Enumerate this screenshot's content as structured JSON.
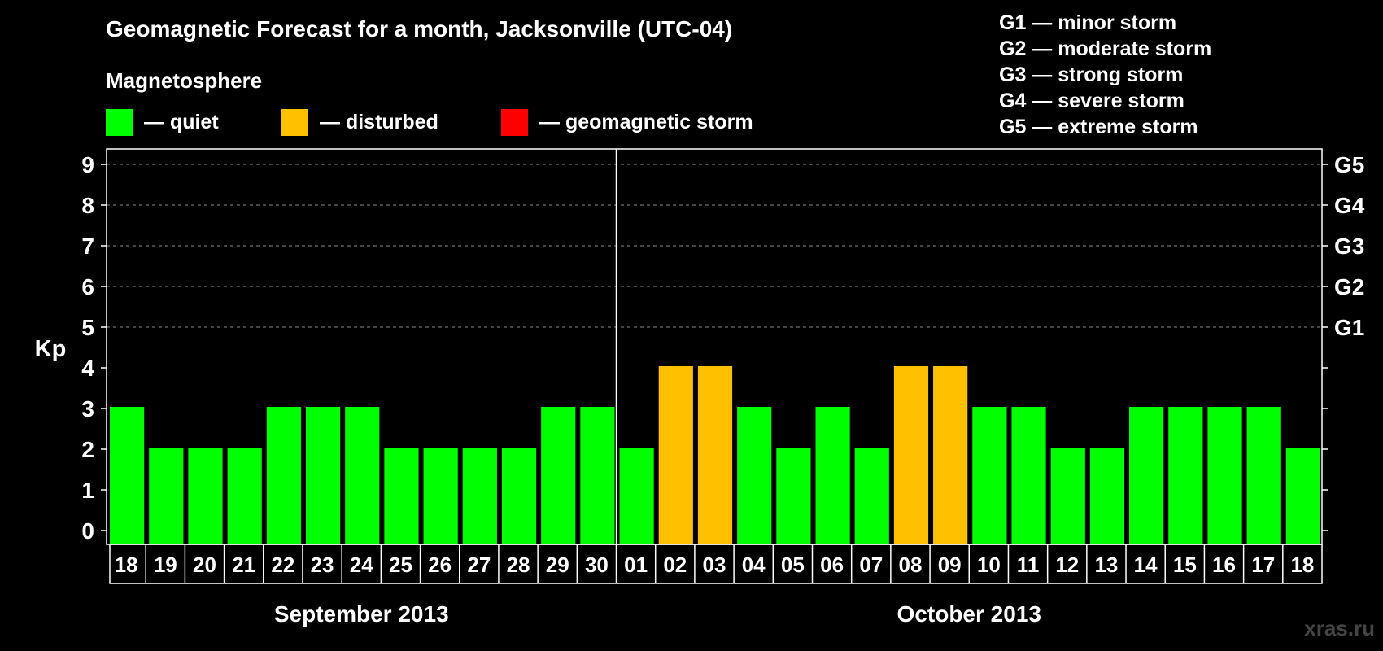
{
  "title": "Geomagnetic Forecast for a month, Jacksonville (UTC-04)",
  "subtitle": "Magnetosphere",
  "legend": [
    {
      "label": "— quiet",
      "color": "#00ff00"
    },
    {
      "label": "— disturbed",
      "color": "#ffc000"
    },
    {
      "label": "— geomagnetic storm",
      "color": "#ff0000"
    }
  ],
  "g_legend": [
    "G1 — minor storm",
    "G2 — moderate storm",
    "G3 — strong storm",
    "G4 — severe storm",
    "G5 — extreme storm"
  ],
  "watermark": "xras.ru",
  "chart_data": {
    "type": "bar",
    "ylabel": "Kp",
    "ylim": [
      0,
      9
    ],
    "yticks": [
      "0",
      "1",
      "2",
      "3",
      "4",
      "5",
      "6",
      "7",
      "8",
      "9"
    ],
    "right_ticks": [
      {
        "kp": 5,
        "label": "G1"
      },
      {
        "kp": 6,
        "label": "G2"
      },
      {
        "kp": 7,
        "label": "G3"
      },
      {
        "kp": 8,
        "label": "G4"
      },
      {
        "kp": 9,
        "label": "G5"
      }
    ],
    "grid": true,
    "categories": [
      "18",
      "19",
      "20",
      "21",
      "22",
      "23",
      "24",
      "25",
      "26",
      "27",
      "28",
      "29",
      "30",
      "01",
      "02",
      "03",
      "04",
      "05",
      "06",
      "07",
      "08",
      "09",
      "10",
      "11",
      "12",
      "13",
      "14",
      "15",
      "16",
      "17",
      "18"
    ],
    "values": [
      3,
      2,
      2,
      2,
      3,
      3,
      3,
      2,
      2,
      2,
      2,
      3,
      3,
      2,
      4,
      4,
      3,
      2,
      3,
      2,
      4,
      4,
      3,
      3,
      2,
      2,
      3,
      3,
      3,
      3,
      2
    ],
    "months": [
      {
        "label": "September 2013",
        "count": 13
      },
      {
        "label": "October 2013",
        "count": 18
      }
    ],
    "colors": {
      "quiet": "#00ff00",
      "disturbed": "#ffc000",
      "storm": "#ff0000"
    }
  }
}
